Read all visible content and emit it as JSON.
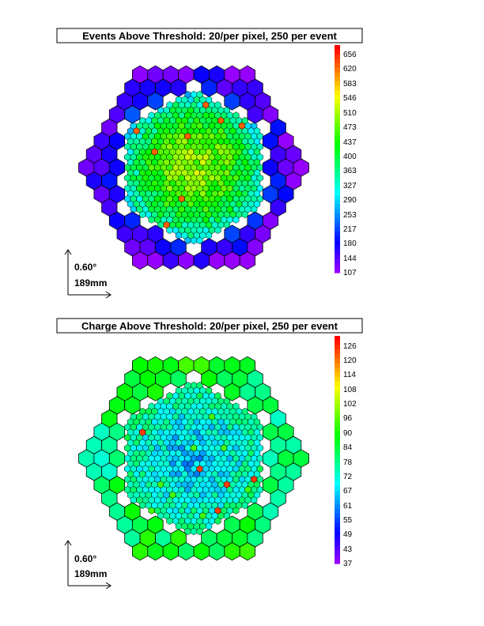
{
  "chart_data": [
    {
      "type": "heatmap",
      "title": "Events Above Threshold: 20/per pixel, 250 per event",
      "colorbar": {
        "ticks": [
          "656",
          "620",
          "583",
          "546",
          "510",
          "473",
          "437",
          "400",
          "363",
          "327",
          "290",
          "253",
          "217",
          "180",
          "144",
          "107"
        ],
        "range": [
          107,
          675
        ]
      },
      "scale": {
        "angle": "0.60°",
        "length": "189mm"
      }
    },
    {
      "type": "heatmap",
      "title": "Charge Above Threshold: 20/per pixel, 250 per event",
      "colorbar": {
        "ticks": [
          "126",
          "120",
          "114",
          "108",
          "102",
          "96",
          "90",
          "84",
          "78",
          "72",
          "67",
          "61",
          "55",
          "49",
          "43",
          "37"
        ],
        "range": [
          37,
          130
        ]
      },
      "scale": {
        "angle": "0.60°",
        "length": "189mm"
      }
    }
  ]
}
